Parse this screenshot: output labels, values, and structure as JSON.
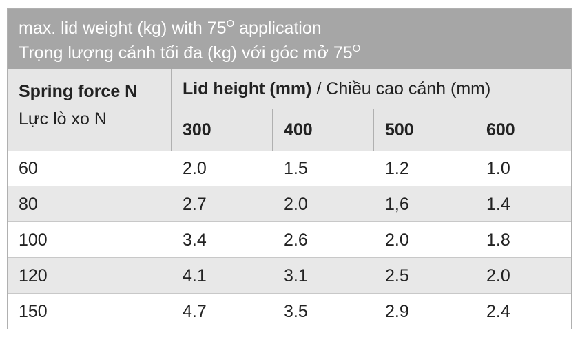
{
  "title": {
    "line1": {
      "text": "max. lid weight (kg) with 75",
      "sup": "O",
      "after": " application"
    },
    "line2": {
      "text": "Trọng lượng cánh tối đa (kg) với góc mở 75",
      "sup": "O"
    }
  },
  "header": {
    "spring_force": "Spring force N",
    "spring_force_vi": "Lực lò xo N",
    "lid_height": "Lid height (mm)",
    "lid_height_vi": "/ Chiều cao cánh (mm)",
    "columns": [
      "300",
      "400",
      "500",
      "600"
    ]
  },
  "table": {
    "rows": [
      [
        "60",
        "2.0",
        "1.5",
        "1.2",
        "1.0"
      ],
      [
        "80",
        "2.7",
        "2.0",
        "1,6",
        "1.4"
      ],
      [
        "100",
        "3.4",
        "2.6",
        "2.0",
        "1.8"
      ],
      [
        "120",
        "4.1",
        "3.1",
        "2.5",
        "2.0"
      ],
      [
        "150",
        "4.7",
        "3.5",
        "2.9",
        "2.4"
      ]
    ]
  }
}
